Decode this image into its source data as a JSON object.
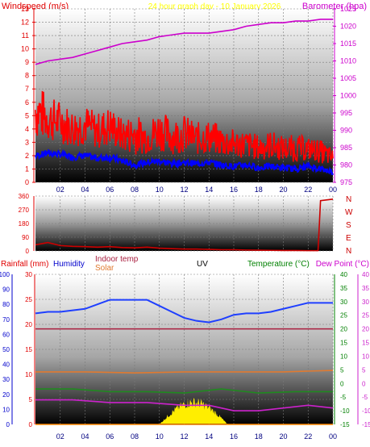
{
  "header": {
    "left_label": "Windspeed (m/s)",
    "center_label": "24 hour graph day - 10 January 2026",
    "right_label": "Barometer (hpa)"
  },
  "middle": {
    "dir_labels": [
      "N",
      "W",
      "S",
      "E",
      "N"
    ]
  },
  "bottom_header": {
    "rainfall": "Rainfall (mm)",
    "humidity": "Humidity",
    "indoor": "Indoor temp",
    "solar": "Solar",
    "uv": "UV",
    "temperature": "Temperature (°C)",
    "dewpoint": "Dew Point (°C)"
  },
  "colors": {
    "wind_gust": "#ff0000",
    "wind_avg": "#0000ff",
    "barometer": "#cc00cc",
    "direction": "#cc0000",
    "humidity": "#1f3fff",
    "indoor": "#aa2040",
    "solar_line": "#e07a30",
    "temperature": "#1f8a1f",
    "dewpoint": "#cc22cc",
    "solar_fill": "#ffee00",
    "uv_line": "#ff8800",
    "axis_left": "#e00000",
    "axis_right": "#cc00cc",
    "rain_axis": "#0000cc",
    "temp_axis": "#008000"
  },
  "chart_data": [
    {
      "type": "line",
      "title": "24 hour graph day - 10 January 2026",
      "xlabel": "",
      "ylabel": "Windspeed (m/s)",
      "y2label": "Barometer (hpa)",
      "ylim": [
        0,
        13
      ],
      "y2lim": [
        975,
        1025
      ],
      "yticks": [
        0,
        1,
        2,
        3,
        4,
        5,
        6,
        7,
        8,
        9,
        10,
        11,
        12,
        13
      ],
      "y2ticks": [
        975,
        980,
        985,
        990,
        995,
        1000,
        1005,
        1010,
        1015,
        1020,
        1025
      ],
      "xticks": [
        "02",
        "04",
        "06",
        "08",
        "10",
        "12",
        "14",
        "16",
        "18",
        "20",
        "22",
        "00"
      ],
      "series": [
        {
          "name": "Gust",
          "x": [
            0,
            1,
            2,
            3,
            4,
            5,
            6,
            7,
            8,
            9,
            10,
            11,
            12,
            13,
            14,
            15,
            16,
            17,
            18,
            19,
            20,
            21,
            22,
            23,
            24
          ],
          "values": [
            7.8,
            6.5,
            6.2,
            5.5,
            5.9,
            5.2,
            5.8,
            4.8,
            5.2,
            4.6,
            5.5,
            4.8,
            5.1,
            4.5,
            4.7,
            4.3,
            4.0,
            3.9,
            3.6,
            3.9,
            3.5,
            3.6,
            3.4,
            3.2,
            2.5
          ]
        },
        {
          "name": "Average",
          "x": [
            0,
            1,
            2,
            3,
            4,
            5,
            6,
            7,
            8,
            9,
            10,
            11,
            12,
            13,
            14,
            15,
            16,
            17,
            18,
            19,
            20,
            21,
            22,
            23,
            24
          ],
          "values": [
            2.0,
            2.2,
            2.1,
            1.9,
            2.0,
            1.8,
            1.9,
            1.6,
            1.3,
            1.5,
            1.6,
            1.4,
            1.5,
            1.4,
            1.5,
            1.3,
            1.2,
            1.3,
            1.1,
            1.2,
            1.1,
            1.0,
            1.2,
            1.0,
            0.8
          ]
        },
        {
          "name": "Barometer",
          "axis": "y2",
          "x": [
            0,
            1,
            2,
            3,
            4,
            5,
            6,
            7,
            8,
            9,
            10,
            11,
            12,
            13,
            14,
            15,
            16,
            17,
            18,
            19,
            20,
            21,
            22,
            23,
            24
          ],
          "values": [
            1009,
            1010,
            1010.5,
            1011,
            1012,
            1013,
            1014,
            1015,
            1015.5,
            1016,
            1017,
            1017.5,
            1018,
            1018,
            1018,
            1018.5,
            1019,
            1020,
            1020.5,
            1021,
            1021,
            1021.5,
            1021.5,
            1022,
            1022
          ]
        }
      ]
    },
    {
      "type": "line",
      "ylabel": "Wind direction",
      "ylim": [
        0,
        360
      ],
      "yticks": [
        0,
        90,
        180,
        270,
        360
      ],
      "series": [
        {
          "name": "Direction",
          "x": [
            0,
            1,
            2,
            3,
            4,
            5,
            6,
            7,
            8,
            9,
            10,
            11,
            12,
            13,
            14,
            15,
            16,
            17,
            18,
            19,
            20,
            21,
            22,
            22.8,
            23,
            24
          ],
          "values": [
            40,
            55,
            35,
            30,
            28,
            25,
            28,
            22,
            20,
            25,
            18,
            15,
            12,
            12,
            10,
            8,
            8,
            6,
            5,
            4,
            3,
            3,
            2,
            2,
            330,
            340
          ]
        }
      ]
    },
    {
      "type": "line",
      "ylabel": "Rainfall (mm)",
      "y1lim": [
        0,
        100
      ],
      "y1ticks": [
        0,
        10,
        20,
        30,
        40,
        50,
        60,
        70,
        80,
        90,
        100
      ],
      "y2lim": [
        0,
        30
      ],
      "y2ticks": [
        0,
        5,
        10,
        15,
        20,
        25,
        30
      ],
      "y3lim": [
        -15,
        40
      ],
      "y3ticks": [
        -15,
        -10,
        -5,
        0,
        5,
        10,
        15,
        20,
        25,
        30,
        35,
        40
      ],
      "xticks": [
        "02",
        "04",
        "06",
        "08",
        "10",
        "12",
        "14",
        "16",
        "18",
        "20",
        "22",
        "00"
      ],
      "series": [
        {
          "name": "Humidity",
          "axis": "y1",
          "x": [
            0,
            1,
            2,
            3,
            4,
            5,
            6,
            7,
            8,
            9,
            10,
            11,
            12,
            13,
            14,
            15,
            16,
            17,
            18,
            19,
            20,
            21,
            22,
            23,
            24
          ],
          "values": [
            74,
            75,
            75,
            76,
            77,
            80,
            83,
            83,
            83,
            83,
            79,
            75,
            71,
            69,
            68,
            70,
            73,
            74,
            74,
            75,
            77,
            79,
            81,
            81,
            81
          ]
        },
        {
          "name": "Indoor temp",
          "axis": "y3",
          "x": [
            0,
            6,
            12,
            18,
            24
          ],
          "values": [
            20,
            20,
            20,
            20,
            20
          ]
        },
        {
          "name": "Solar",
          "axis": "y2",
          "x": [
            0,
            4,
            8,
            12,
            16,
            20,
            24
          ],
          "values": [
            10.5,
            10.5,
            10.3,
            10.5,
            10.5,
            10.5,
            10.8
          ]
        },
        {
          "name": "Temperature (°C)",
          "axis": "y3",
          "x": [
            0,
            3,
            6,
            9,
            12,
            15,
            18,
            21,
            24
          ],
          "values": [
            -2,
            -2,
            -3,
            -3,
            -3.5,
            -2,
            -3.5,
            -3,
            -3
          ]
        },
        {
          "name": "Dew Point (°C)",
          "axis": "y3",
          "x": [
            0,
            3,
            6,
            9,
            12,
            14,
            16,
            18,
            20,
            22,
            24
          ],
          "values": [
            -6,
            -6,
            -7,
            -7,
            -8,
            -8,
            -10,
            -10,
            -9,
            -8,
            -9
          ]
        },
        {
          "name": "UV",
          "axis": "y2",
          "x": [
            0,
            24
          ],
          "values": [
            0,
            0
          ]
        }
      ]
    }
  ]
}
